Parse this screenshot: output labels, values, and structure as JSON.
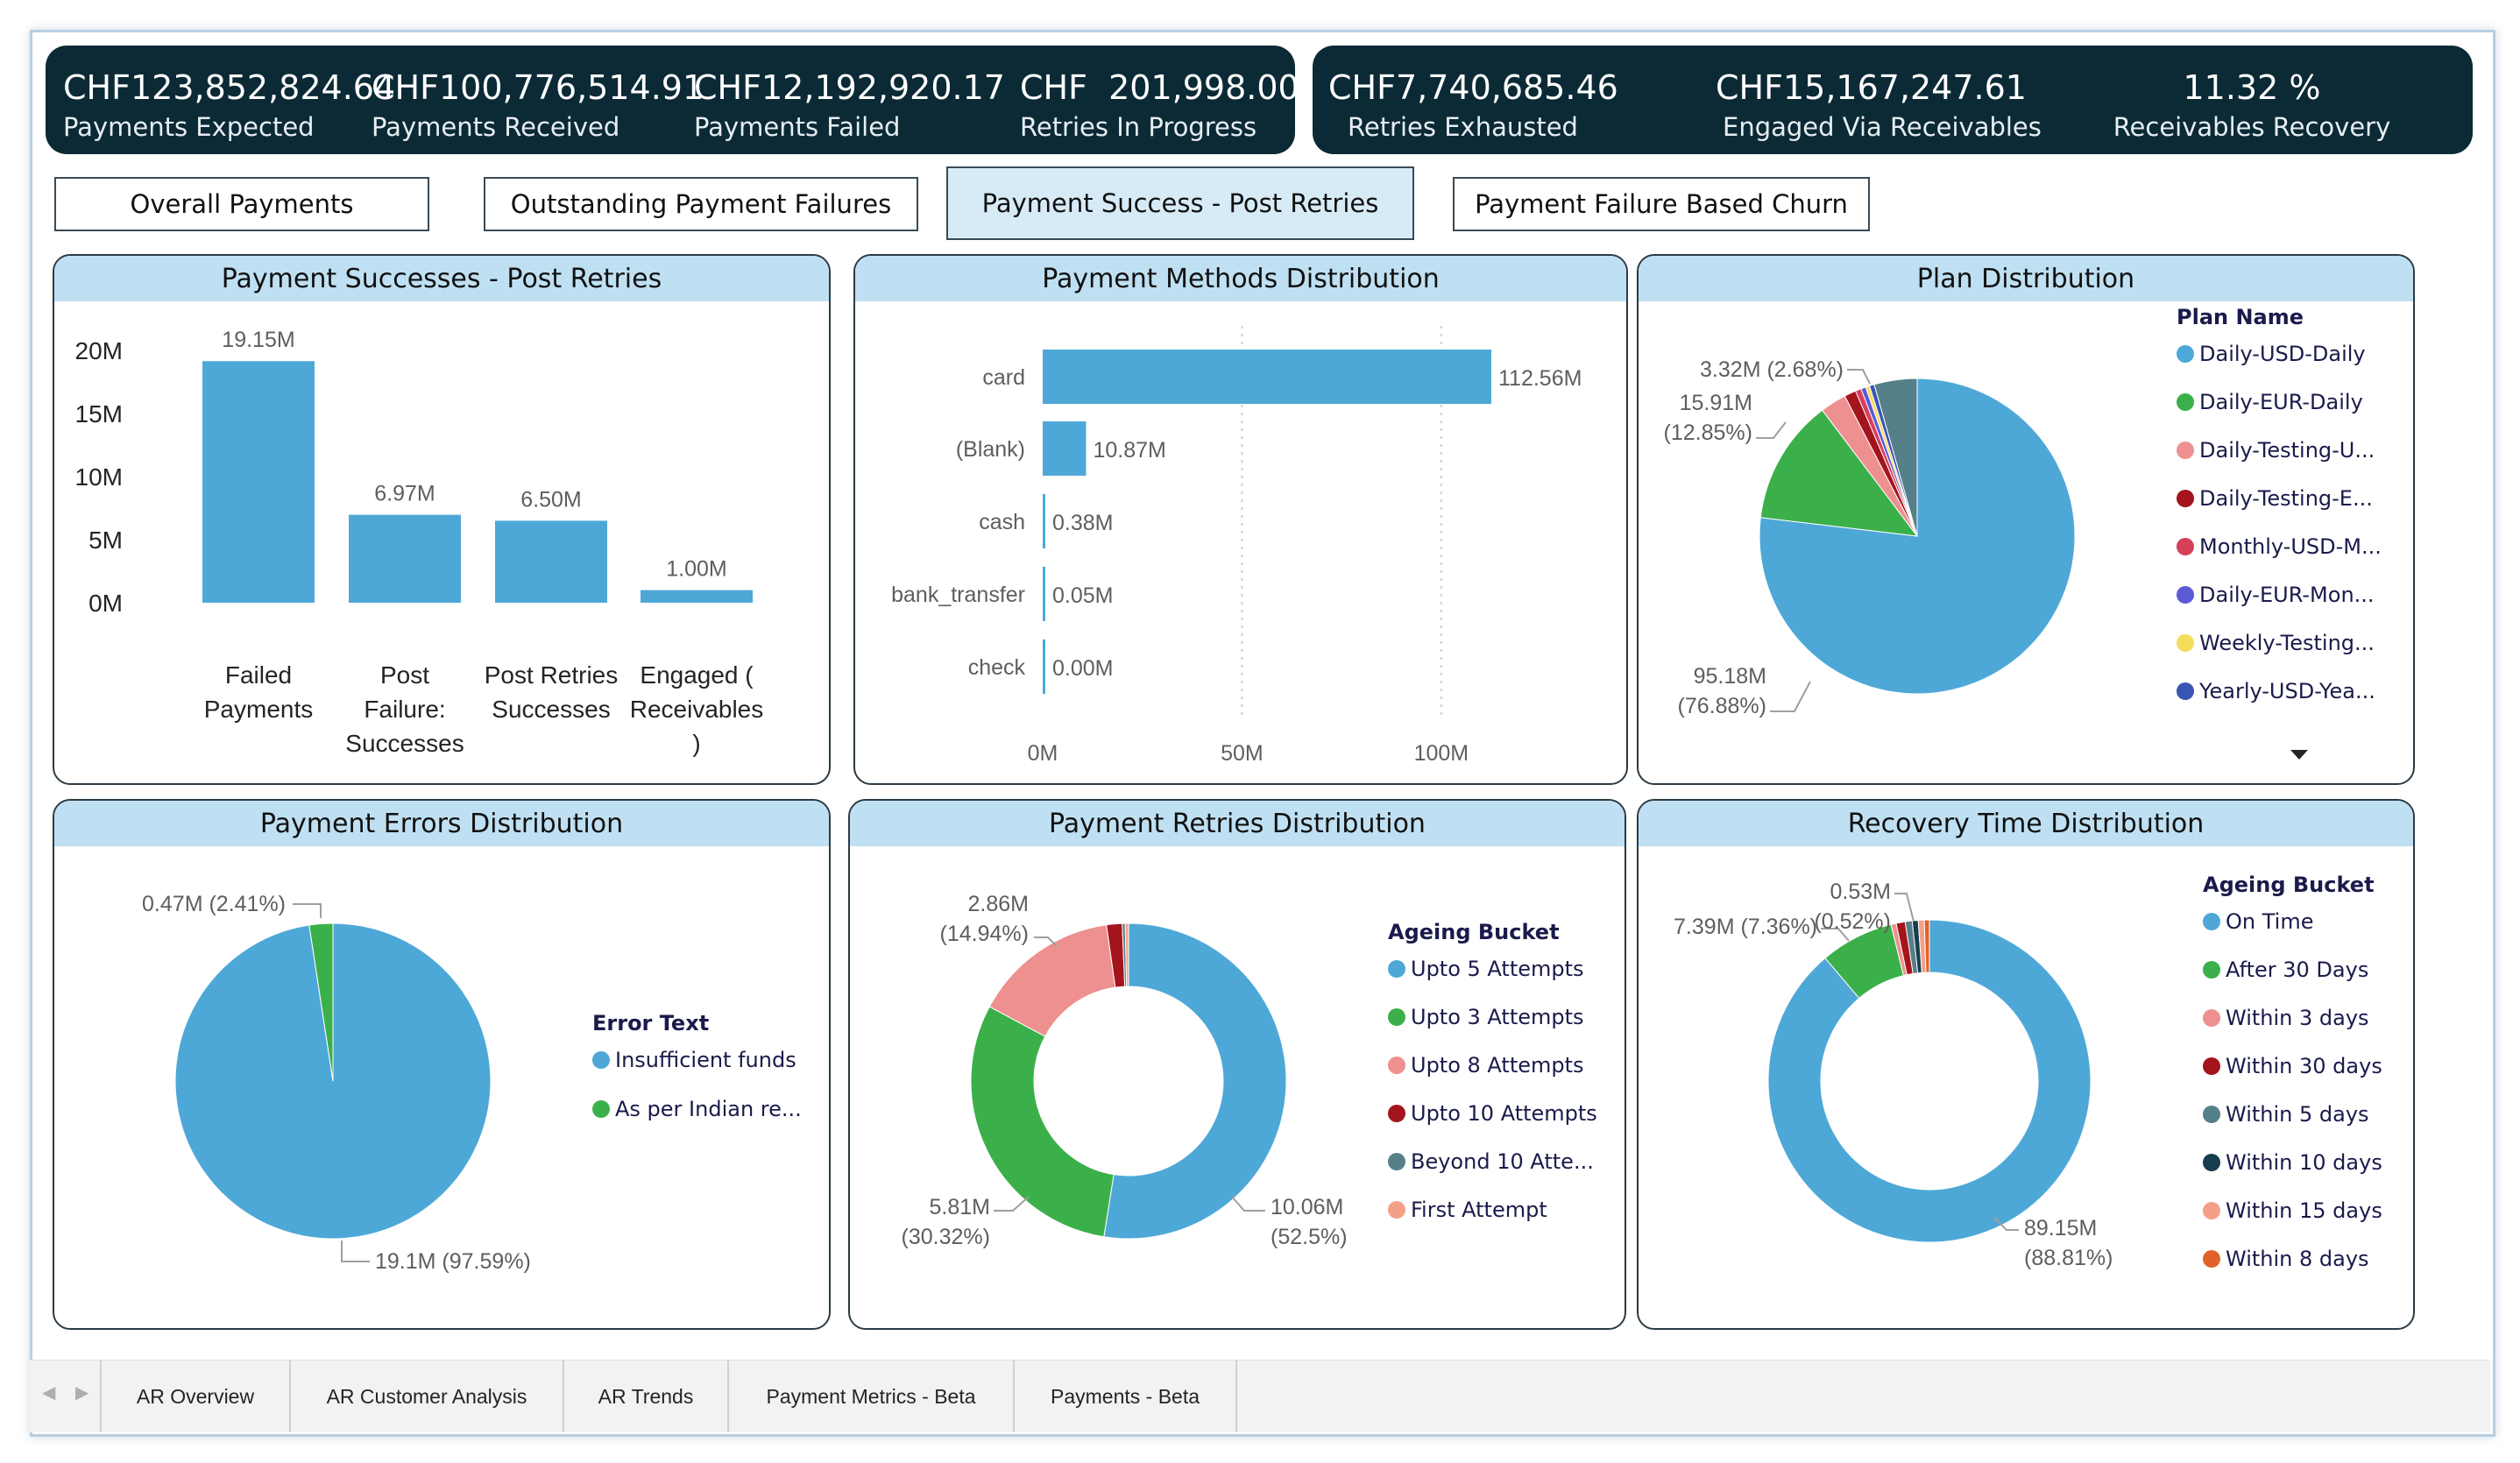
{
  "kpis_left": [
    {
      "value": "CHF123,852,824.64",
      "label": "Payments Expected"
    },
    {
      "value": "CHF100,776,514.91",
      "label": "Payments Received"
    },
    {
      "value": "CHF12,192,920.17",
      "label": "Payments Failed"
    },
    {
      "value": "CHF  201,998.00",
      "label": "Retries In Progress"
    }
  ],
  "kpis_right": [
    {
      "value": "CHF7,740,685.46",
      "label": "Retries Exhausted"
    },
    {
      "value": "CHF15,167,247.61",
      "label": "Engaged Via Receivables"
    },
    {
      "value": "11.32 %",
      "label": "Receivables Recovery"
    }
  ],
  "nav_buttons": [
    {
      "label": "Overall Payments"
    },
    {
      "label": "Outstanding Payment Failures"
    },
    {
      "label": "Payment Success - Post Retries"
    },
    {
      "label": "Payment Failure Based Churn"
    }
  ],
  "page_tabs": [
    "AR Overview",
    "AR Customer Analysis",
    "AR Trends",
    "Payment Metrics - Beta",
    "Payments - Beta"
  ],
  "colors": {
    "blue": "#4ea8d7",
    "green": "#3bb04a",
    "pink": "#ee9090",
    "darkred": "#a3141c",
    "crimson": "#d64059",
    "purple": "#5b5bd6",
    "yellow": "#f5dc5c",
    "navy": "#3a54b4",
    "teal": "#55808a",
    "darkteal": "#173e4e",
    "salmon": "#f4a089",
    "orange": "#e0622a"
  },
  "chart_data": [
    {
      "id": "successes",
      "type": "bar",
      "title": "Payment Successes - Post Retries",
      "categories": [
        [
          "Failed",
          "Payments"
        ],
        [
          "Post",
          "Failure:",
          "Successes"
        ],
        [
          "Post Retries",
          "Successes"
        ],
        [
          "Engaged (",
          "Receivables",
          ")"
        ]
      ],
      "values": [
        19.15,
        6.97,
        6.5,
        1.0
      ],
      "data_labels": [
        "19.15M",
        "6.97M",
        "6.50M",
        "1.00M"
      ],
      "ylim": [
        0,
        20
      ],
      "yticks": [
        0,
        5,
        10,
        15,
        20
      ],
      "ytick_labels": [
        "0M",
        "5M",
        "10M",
        "15M",
        "20M"
      ]
    },
    {
      "id": "methods",
      "type": "bar",
      "orientation": "horizontal",
      "title": "Payment Methods Distribution",
      "categories": [
        "card",
        "(Blank)",
        "cash",
        "bank_transfer",
        "check"
      ],
      "values": [
        112.56,
        10.87,
        0.38,
        0.05,
        0.0
      ],
      "data_labels": [
        "112.56M",
        "10.87M",
        "0.38M",
        "0.05M",
        "0.00M"
      ],
      "xlim": [
        0,
        112.56
      ],
      "xticks": [
        0,
        50,
        100
      ],
      "xtick_labels": [
        "0M",
        "50M",
        "100M"
      ]
    },
    {
      "id": "plan",
      "type": "pie",
      "title": "Plan Distribution",
      "legend_title": "Plan Name",
      "legend": [
        "Daily-USD-Daily",
        "Daily-EUR-Daily",
        "Daily-Testing-U...",
        "Daily-Testing-E...",
        "Monthly-USD-M...",
        "Daily-EUR-Mon...",
        "Weekly-Testing...",
        "Yearly-USD-Yea..."
      ],
      "slices": [
        76.88,
        12.85,
        2.68,
        1.2,
        0.6,
        0.5,
        0.4,
        0.5,
        4.39
      ],
      "slice_colors": [
        "blue",
        "green",
        "pink",
        "darkred",
        "crimson",
        "purple",
        "yellow",
        "navy",
        "teal"
      ],
      "labels": [
        {
          "line1": "95.18M",
          "line2": "(76.88%)"
        },
        {
          "line1": "15.91M",
          "line2": "(12.85%)"
        },
        {
          "line1": "3.32M (2.68%)",
          "line2": ""
        }
      ]
    },
    {
      "id": "errors",
      "type": "pie",
      "title": "Payment Errors Distribution",
      "legend_title": "Error Text",
      "legend": [
        "Insufficient funds",
        "As per Indian re..."
      ],
      "slices": [
        97.59,
        2.41
      ],
      "slice_colors": [
        "blue",
        "green"
      ],
      "labels": [
        {
          "line1": "19.1M (97.59%)",
          "line2": ""
        },
        {
          "line1": "0.47M (2.41%)",
          "line2": ""
        }
      ]
    },
    {
      "id": "retries",
      "type": "pie",
      "donut": true,
      "title": "Payment Retries Distribution",
      "legend_title": "Ageing Bucket",
      "legend": [
        "Upto 5 Attempts",
        "Upto 3 Attempts",
        "Upto 8 Attempts",
        "Upto 10 Attempts",
        "Beyond 10 Atte...",
        "First Attempt"
      ],
      "slices": [
        52.5,
        30.32,
        14.94,
        1.6,
        0.3,
        0.34
      ],
      "slice_colors": [
        "blue",
        "green",
        "pink",
        "darkred",
        "teal",
        "salmon"
      ],
      "labels": [
        {
          "line1": "10.06M",
          "line2": "(52.5%)"
        },
        {
          "line1": "5.81M",
          "line2": "(30.32%)"
        },
        {
          "line1": "2.86M",
          "line2": "(14.94%)"
        }
      ]
    },
    {
      "id": "recovery",
      "type": "pie",
      "donut": true,
      "title": "Recovery Time Distribution",
      "legend_title": "Ageing Bucket",
      "legend": [
        "On Time",
        "After 30 Days",
        "Within 3 days",
        "Within 30 days",
        "Within 5 days",
        "Within 10 days",
        "Within 15 days",
        "Within 8 days"
      ],
      "slices": [
        88.81,
        7.36,
        0.52,
        0.9,
        0.7,
        0.6,
        0.6,
        0.51
      ],
      "slice_colors": [
        "blue",
        "green",
        "pink",
        "darkred",
        "teal",
        "darkteal",
        "salmon",
        "orange"
      ],
      "labels": [
        {
          "line1": "89.15M",
          "line2": "(88.81%)"
        },
        {
          "line1": "7.39M (7.36%)",
          "line2": ""
        },
        {
          "line1": "0.53M",
          "line2": "(0.52%)"
        }
      ]
    }
  ]
}
